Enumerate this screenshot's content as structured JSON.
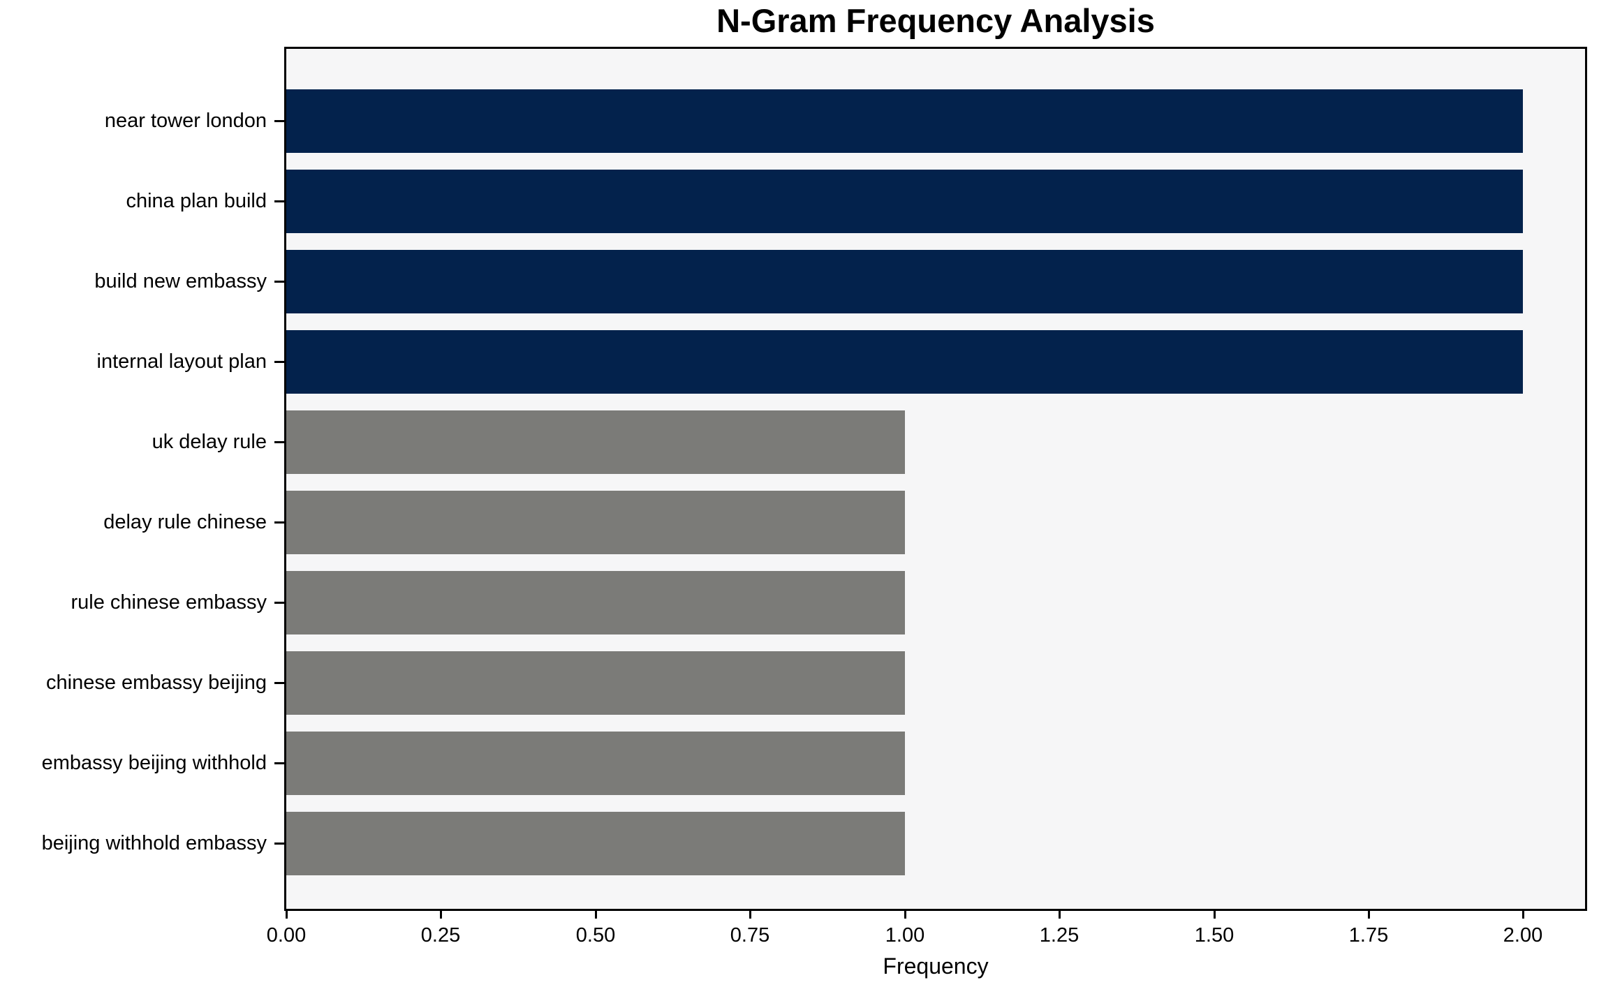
{
  "chart_data": {
    "type": "bar",
    "orientation": "horizontal",
    "title": "N-Gram Frequency Analysis",
    "xlabel": "Frequency",
    "ylabel": "",
    "categories": [
      "near tower london",
      "china plan build",
      "build new embassy",
      "internal layout plan",
      "uk delay rule",
      "delay rule chinese",
      "rule chinese embassy",
      "chinese embassy beijing",
      "embassy beijing withhold",
      "beijing withhold embassy"
    ],
    "values": [
      2,
      2,
      2,
      2,
      1,
      1,
      1,
      1,
      1,
      1
    ],
    "bar_colors": [
      "#03224c",
      "#03224c",
      "#03224c",
      "#03224c",
      "#7b7b78",
      "#7b7b78",
      "#7b7b78",
      "#7b7b78",
      "#7b7b78",
      "#7b7b78"
    ],
    "xticks": [
      "0.00",
      "0.25",
      "0.50",
      "0.75",
      "1.00",
      "1.25",
      "1.50",
      "1.75",
      "2.00"
    ],
    "xlim": [
      0,
      2.1
    ],
    "grid": false,
    "legend": null,
    "colors": {
      "highlight": "#03224c",
      "default": "#7b7b78",
      "plot_bg": "#f6f6f7",
      "figure_bg": "#ffffff",
      "axis": "#000000",
      "text": "#000000"
    }
  }
}
